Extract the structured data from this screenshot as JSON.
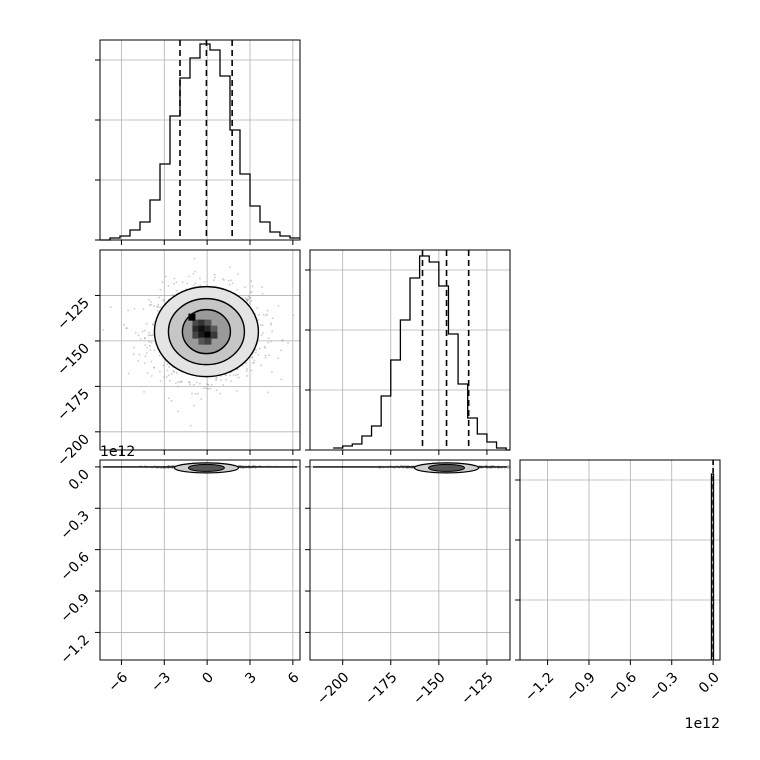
{
  "chart_data": {
    "type": "corner",
    "grid": true,
    "quantile_lines": "dashed",
    "panels": [
      {
        "kind": "histogram",
        "row": 0,
        "col": 0,
        "xlim": [
          -7.5,
          6.5
        ],
        "ylim": [
          0,
          1.0
        ],
        "bin_edges": [
          -7.5,
          -6.8,
          -6.1,
          -5.4,
          -4.7,
          -4.0,
          -3.3,
          -2.6,
          -1.9,
          -1.2,
          -0.5,
          0.2,
          0.9,
          1.6,
          2.3,
          3.0,
          3.7,
          4.4,
          5.1,
          5.8,
          6.5
        ],
        "counts": [
          0,
          0.01,
          0.02,
          0.05,
          0.09,
          0.2,
          0.38,
          0.62,
          0.81,
          0.91,
          0.98,
          0.95,
          0.82,
          0.55,
          0.33,
          0.17,
          0.09,
          0.04,
          0.02,
          0.01
        ],
        "quantiles": [
          -1.9,
          -0.05,
          1.75
        ]
      },
      {
        "kind": "2d",
        "row": 1,
        "col": 0,
        "xlim": [
          -7.5,
          6.5
        ],
        "ylim": [
          -210,
          -100
        ],
        "yticks": [
          "-125",
          "-150",
          "-175",
          "-200"
        ],
        "center": [
          -0.05,
          -146
        ],
        "spread": [
          1.75,
          12
        ]
      },
      {
        "kind": "histogram",
        "row": 1,
        "col": 1,
        "xlim": [
          -217,
          -113
        ],
        "ylim": [
          0,
          1.0
        ],
        "bin_edges": [
          -205,
          -200,
          -195,
          -190,
          -185,
          -180,
          -175,
          -170,
          -165,
          -160,
          -155,
          -150,
          -145,
          -140,
          -135,
          -130,
          -125,
          -120,
          -115,
          -113
        ],
        "counts": [
          0.01,
          0.02,
          0.03,
          0.07,
          0.12,
          0.27,
          0.45,
          0.65,
          0.86,
          0.97,
          0.94,
          0.82,
          0.58,
          0.33,
          0.16,
          0.08,
          0.04,
          0.01,
          0
        ],
        "quantiles": [
          -158.5,
          -146,
          -134.5
        ]
      },
      {
        "kind": "2d-flat",
        "row": 2,
        "col": 0,
        "xlim": [
          -7.5,
          6.5
        ],
        "ylim": [
          -1.4,
          0.05
        ],
        "ylabel_offset": "1e12",
        "yticks": [
          "0.0",
          "-0.3",
          "-0.6",
          "-0.9",
          "-1.2"
        ],
        "xticks": [
          "-6",
          "-3",
          "0",
          "3",
          "6"
        ],
        "center_x": -0.05
      },
      {
        "kind": "2d-flat",
        "row": 2,
        "col": 1,
        "xlim": [
          -217,
          -113
        ],
        "ylim": [
          -1.4,
          0.05
        ],
        "xticks": [
          "-200",
          "-175",
          "-150",
          "-125"
        ],
        "center_x": -146
      },
      {
        "kind": "histogram-spike",
        "row": 2,
        "col": 2,
        "xlim": [
          -1.4,
          0.05
        ],
        "xticks": [
          "-1.2",
          "-0.9",
          "-0.6",
          "-0.3",
          "0.0"
        ],
        "xlabel_offset": "1e12",
        "spike_bin": [
          -0.012,
          0.003
        ],
        "spike_height": 0.93,
        "quantiles": [
          0.0,
          0.0,
          0.0
        ]
      }
    ]
  }
}
